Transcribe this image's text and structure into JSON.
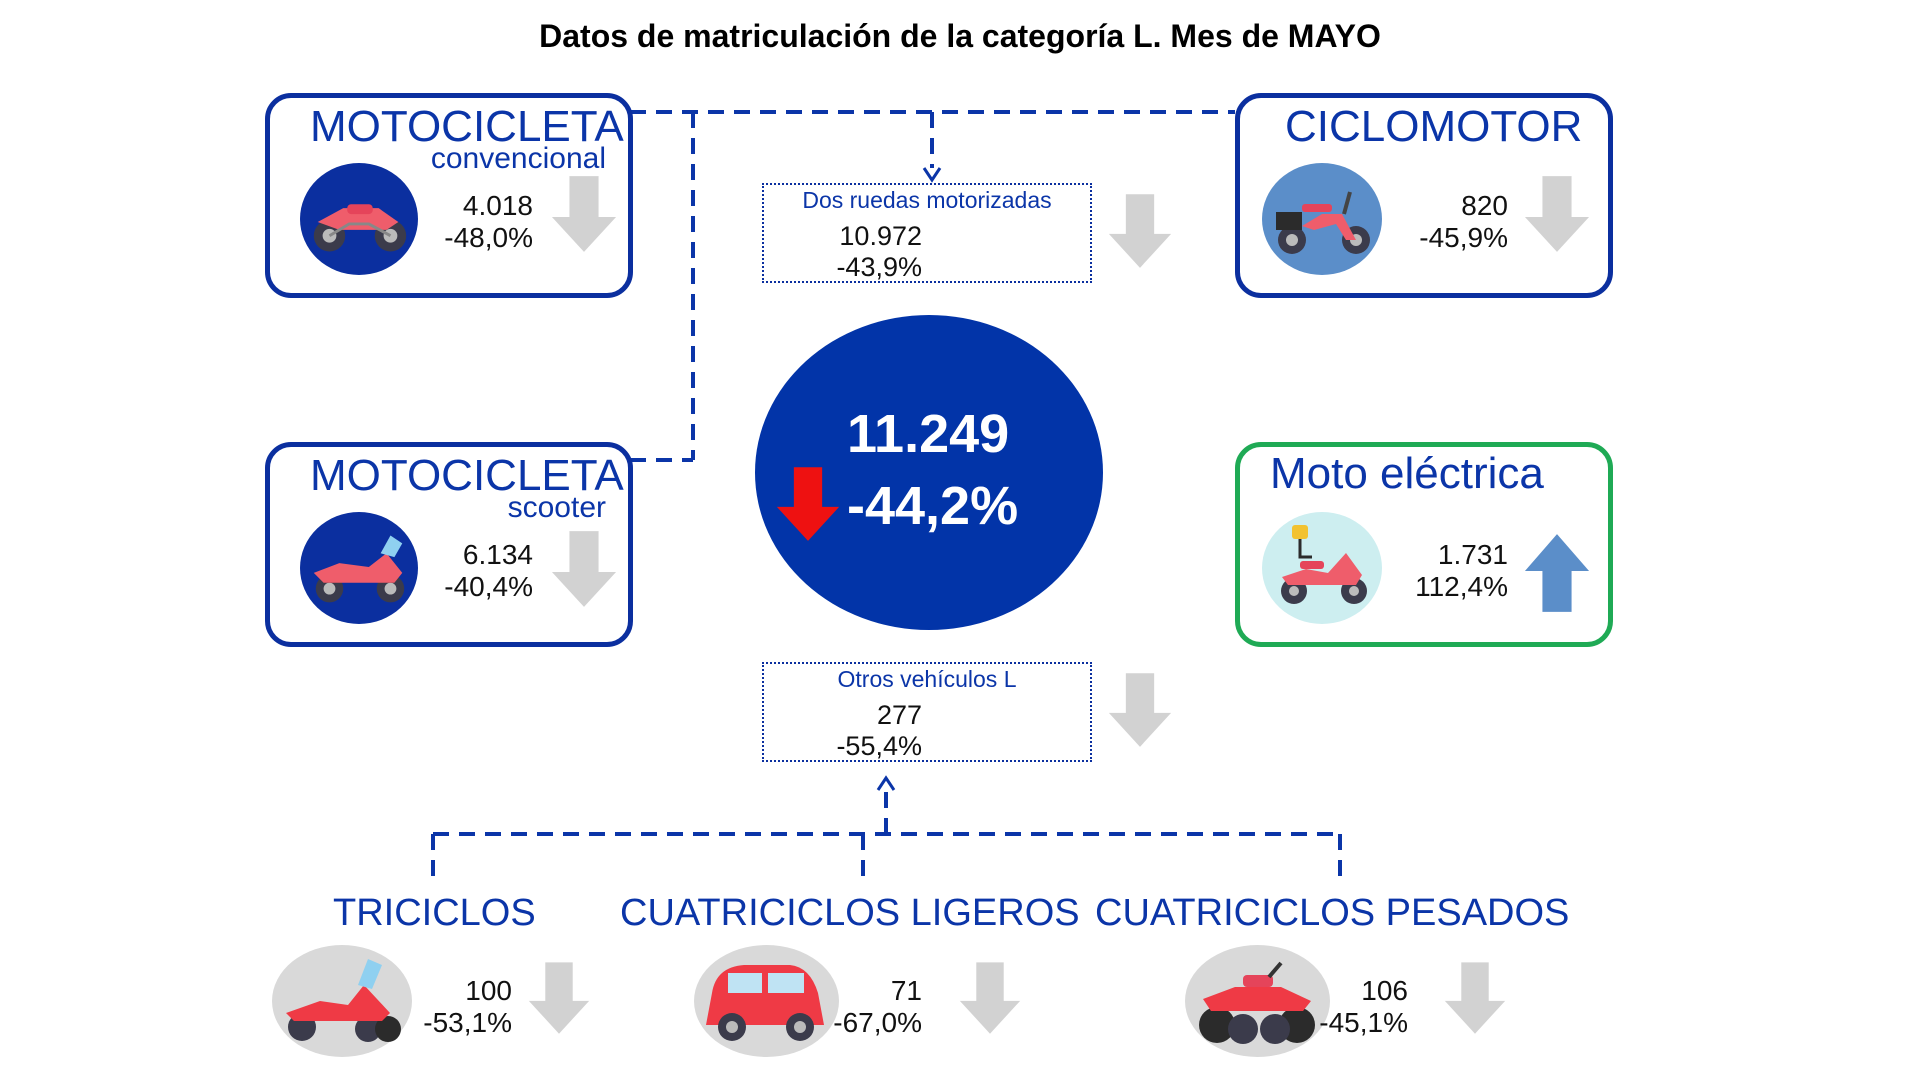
{
  "title": "Datos de matriculación de la categoría L. Mes de MAYO",
  "colors": {
    "primary_blue": "#0b2f9f",
    "total_circle": "#0234a8",
    "down_arrow_gray": "#d2d2d2",
    "up_arrow_blue": "#5b8ec9",
    "highlight_green": "#1faa55",
    "red_arrow": "#ee1111"
  },
  "total": {
    "value": "11.249",
    "change": "-44,2%",
    "trend_icon": "red-down-arrow"
  },
  "moto_convencional": {
    "title": "MOTOCICLETA",
    "subtitle": "convencional",
    "value": "4.018",
    "change": "-48,0%",
    "trend": "down"
  },
  "moto_scooter": {
    "title": "MOTOCICLETA",
    "subtitle": "scooter",
    "value": "6.134",
    "change": "-40,4%",
    "trend": "down"
  },
  "ciclomotor": {
    "title": "CICLOMOTOR",
    "value": "820",
    "change": "-45,9%",
    "trend": "down"
  },
  "moto_electrica": {
    "title": "Moto eléctrica",
    "value": "1.731",
    "change": "112,4%",
    "trend": "up"
  },
  "dos_ruedas": {
    "label": "Dos ruedas motorizadas",
    "value": "10.972",
    "change": "-43,9%",
    "trend": "down"
  },
  "otros_l": {
    "label": "Otros vehículos L",
    "value": "277",
    "change": "-55,4%",
    "trend": "down"
  },
  "triciclos": {
    "title": "TRICICLOS",
    "value": "100",
    "change": "-53,1%",
    "trend": "down"
  },
  "cuatriciclos_ligeros": {
    "title": "CUATRICICLOS LIGEROS",
    "value": "71",
    "change": "-67,0%",
    "trend": "down"
  },
  "cuatriciclos_pesados": {
    "title": "CUATRICICLOS PESADOS",
    "value": "106",
    "change": "-45,1%",
    "trend": "down"
  }
}
